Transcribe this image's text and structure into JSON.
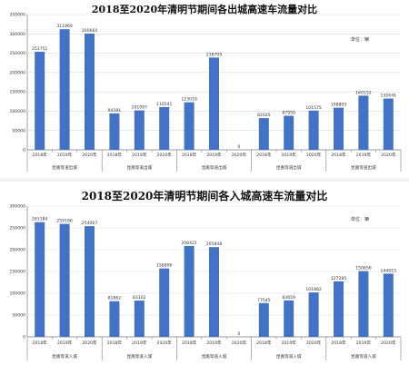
{
  "colors": {
    "bar": "#4472c4",
    "grid": "#d9d9d9",
    "axis": "#7f7f7f",
    "text": "#333333"
  },
  "chart_data": [
    {
      "type": "bar",
      "title": "2018至2020年清明节期间各出城高速车流量对比",
      "unit": "单位：辆",
      "ylim": [
        0,
        350000
      ],
      "yticks": [
        "0",
        "50000",
        "100000",
        "150000",
        "200000",
        "250000",
        "300000",
        "350000"
      ],
      "grid": true,
      "groups": [
        {
          "label": "昆嵩等道出城",
          "categories": [
            "2018年",
            "2019年",
            "2020年"
          ],
          "values": [
            253751,
            311969,
            300660
          ],
          "value_labels": [
            "253751",
            "311969",
            "300660"
          ]
        },
        {
          "label": "昆嵩等道出城",
          "categories": [
            "2018年",
            "2019年",
            "2020年"
          ],
          "values": [
            94391,
            101997,
            110541
          ],
          "value_labels": [
            "94391",
            "101997",
            "110541"
          ]
        },
        {
          "label": "昆嵩等道出城",
          "categories": [
            "2018年",
            "2019年",
            "2020年"
          ],
          "values": [
            123019,
            238709,
            0
          ],
          "value_labels": [
            "123019",
            "238709",
            "0"
          ]
        },
        {
          "label": "昆嵩等道出城",
          "categories": [
            "2018年",
            "2019年",
            "2020年"
          ],
          "values": [
            82025,
            87950,
            101575
          ],
          "value_labels": [
            "82025",
            "87950",
            "101575"
          ]
        },
        {
          "label": "昆嵩等道出城",
          "categories": [
            "2018年",
            "2019年",
            "2020年"
          ],
          "values": [
            108803,
            140152,
            132641
          ],
          "value_labels": [
            "108803",
            "140152",
            "132641"
          ]
        }
      ]
    },
    {
      "type": "bar",
      "title": "2018至2020年清明节期间各入城高速车流量对比",
      "unit": "单位：辆",
      "ylim": [
        0,
        300000
      ],
      "yticks": [
        "0",
        "50000",
        "100000",
        "150000",
        "200000",
        "250000",
        "300000"
      ],
      "grid": true,
      "groups": [
        {
          "label": "昆嵩等道入城",
          "categories": [
            "2018年",
            "2019年",
            "2020年"
          ],
          "values": [
            263184,
            259186,
            254007
          ],
          "value_labels": [
            "263184",
            "259186",
            "254007"
          ]
        },
        {
          "label": "昆嵩等道入城",
          "categories": [
            "2018年",
            "2019年",
            "2020年"
          ],
          "values": [
            81862,
            83162,
            156896
          ],
          "value_labels": [
            "81862",
            "83162",
            "156896"
          ]
        },
        {
          "label": "昆嵩等道入城",
          "categories": [
            "2018年",
            "2019年",
            "2020年"
          ],
          "values": [
            208421,
            205848,
            0
          ],
          "value_labels": [
            "208421",
            "205848",
            "0"
          ]
        },
        {
          "label": "昆嵩等道入城",
          "categories": [
            "2018年",
            "2019年",
            "2020年"
          ],
          "values": [
            77545,
            83659,
            101882
          ],
          "value_labels": [
            "77545",
            "83659",
            "101882"
          ]
        },
        {
          "label": "昆嵩等道入城",
          "categories": [
            "2018年",
            "2019年",
            "2020年"
          ],
          "values": [
            127285,
            150856,
            144915
          ],
          "value_labels": [
            "127285",
            "150856",
            "144915"
          ]
        }
      ]
    }
  ]
}
